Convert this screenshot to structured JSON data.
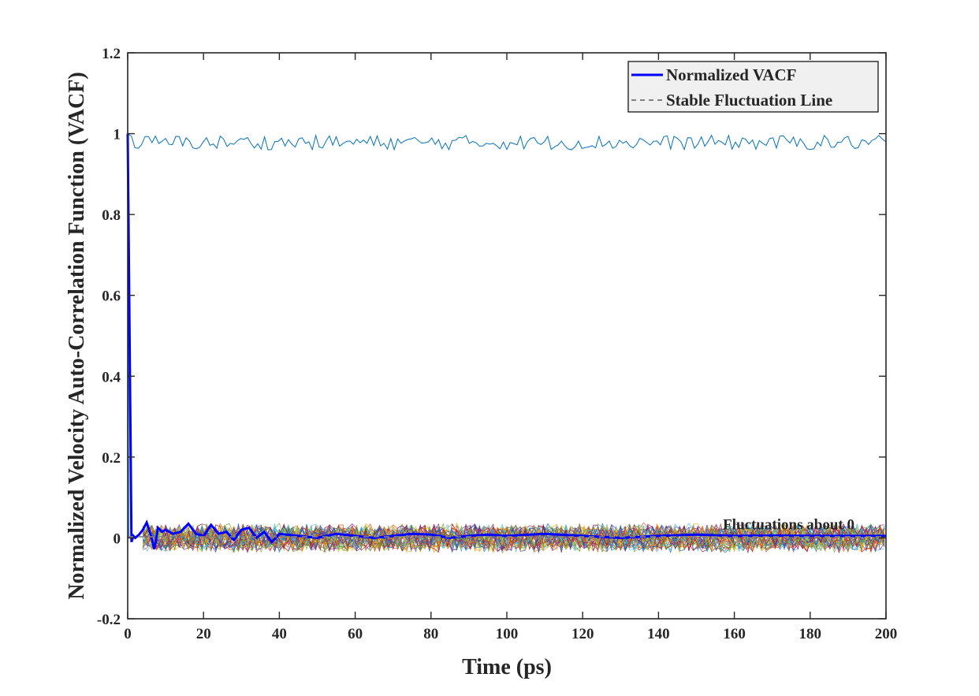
{
  "chart_data": {
    "type": "line",
    "title": "",
    "xlabel": "Time (ps)",
    "ylabel": "Normalized Velocity Auto-Correlation Function (VACF)",
    "xlim": [
      0,
      200
    ],
    "ylim": [
      -0.2,
      1.2
    ],
    "x_ticks": [
      "0",
      "20",
      "40",
      "60",
      "80",
      "100",
      "120",
      "140",
      "160",
      "180",
      "200"
    ],
    "y_ticks": [
      "-0.2",
      "0",
      "0.2",
      "0.4",
      "0.6",
      "0.8",
      "1",
      "1.2"
    ],
    "grid": false,
    "legend_position": "top-right",
    "legend": [
      {
        "label": "Normalized VACF",
        "style": "solid",
        "color": "#0000ff"
      },
      {
        "label": "Stable Fluctuation Line",
        "style": "dashed",
        "color": "#808080"
      }
    ],
    "annotation": {
      "text": "Fluctuations about 0",
      "x": 157,
      "y": 0.012
    },
    "series": [
      {
        "name": "Normalized VACF",
        "color": "#0000ff",
        "x": [
          0,
          0.5,
          1,
          1.5,
          2,
          3,
          4,
          5,
          6,
          7,
          8,
          9,
          10,
          12,
          14,
          16,
          18,
          20,
          22,
          24,
          26,
          28,
          30,
          32,
          34,
          36,
          38,
          40,
          45,
          50,
          55,
          60,
          65,
          70,
          75,
          80,
          85,
          90,
          95,
          100,
          110,
          120,
          130,
          140,
          150,
          160,
          170,
          180,
          190,
          200
        ],
        "values": [
          1.0,
          0.5,
          -0.01,
          0.005,
          0.0,
          0.008,
          0.02,
          0.038,
          0.01,
          -0.028,
          0.025,
          0.015,
          0.02,
          0.01,
          0.015,
          0.035,
          0.01,
          0.005,
          0.032,
          0.01,
          0.015,
          -0.005,
          0.02,
          0.025,
          0.0,
          0.015,
          -0.01,
          0.01,
          0.005,
          0.0,
          0.01,
          0.005,
          0.0,
          0.005,
          0.01,
          0.008,
          0.0,
          0.005,
          0.008,
          0.005,
          0.01,
          0.005,
          0.0,
          0.005,
          0.008,
          0.005,
          0.006,
          0.005,
          0.005,
          0.005
        ]
      },
      {
        "name": "Stable Fluctuation Line",
        "color": "#808080",
        "style": "dashed",
        "x": [
          0,
          200
        ],
        "values": [
          0.003,
          0.003
        ]
      }
    ],
    "background_bundle": {
      "count": 40,
      "x_range": [
        0,
        200
      ],
      "center": 0,
      "amplitude": 0.03
    },
    "top_trace": {
      "color": "#0072bd",
      "x_range": [
        0,
        200
      ],
      "mean": 0.978,
      "amplitude": 0.018
    }
  }
}
